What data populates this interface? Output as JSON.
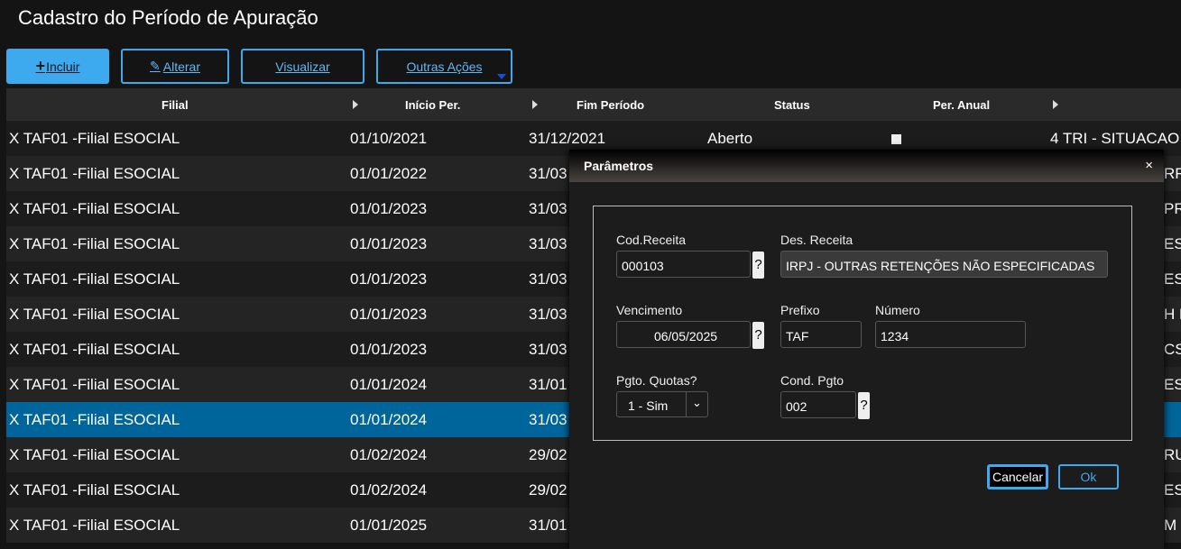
{
  "title": "Cadastro do Período de Apuração",
  "toolbar": {
    "incluir": "Incluir",
    "alterar": "Alterar",
    "visualizar": "Visualizar",
    "outras": "Outras Ações",
    "accent": "#3da9ef"
  },
  "columns": [
    "Filial",
    "Início Per.",
    "Fim Período",
    "Status",
    "Per. Anual"
  ],
  "rows": [
    {
      "filial": "X TAF01 -Filial ESOCIAL",
      "inicio": "01/10/2021",
      "fim": "31/12/2021",
      "status": "Aberto",
      "per_anual": "4 TRI - SITUACAO",
      "tail": ""
    },
    {
      "filial": "X TAF01 -Filial ESOCIAL",
      "inicio": "01/01/2022",
      "fim": "31/03",
      "tail": "RF"
    },
    {
      "filial": "X TAF01 -Filial ESOCIAL",
      "inicio": "01/01/2023",
      "fim": "31/03",
      "tail": "PR"
    },
    {
      "filial": "X TAF01 -Filial ESOCIAL",
      "inicio": "01/01/2023",
      "fim": "31/03",
      "tail": "ES"
    },
    {
      "filial": "X TAF01 -Filial ESOCIAL",
      "inicio": "01/01/2023",
      "fim": "31/03",
      "tail": "ES"
    },
    {
      "filial": "X TAF01 -Filial ESOCIAL",
      "inicio": "01/01/2023",
      "fim": "31/03",
      "tail": "H E"
    },
    {
      "filial": "X TAF01 -Filial ESOCIAL",
      "inicio": "01/01/2023",
      "fim": "31/03",
      "tail": "CS"
    },
    {
      "filial": "X TAF01 -Filial ESOCIAL",
      "inicio": "01/01/2024",
      "fim": "31/01",
      "tail": "ES"
    },
    {
      "filial": "X TAF01 -Filial ESOCIAL",
      "inicio": "01/01/2024",
      "fim": "31/03",
      "tail": "",
      "selected": true
    },
    {
      "filial": "X TAF01 -Filial ESOCIAL",
      "inicio": "01/02/2024",
      "fim": "29/02",
      "tail": "RU"
    },
    {
      "filial": "X TAF01 -Filial ESOCIAL",
      "inicio": "01/02/2024",
      "fim": "29/02",
      "tail": "ES"
    },
    {
      "filial": "X TAF01 -Filial ESOCIAL",
      "inicio": "01/01/2025",
      "fim": "31/01",
      "tail": "M"
    }
  ],
  "dialog": {
    "title": "Parâmetros",
    "close": "×",
    "cod_receita_label": "Cod.Receita",
    "cod_receita": "000103",
    "des_receita_label": "Des. Receita",
    "des_receita": "IRPJ - OUTRAS RETENÇÕES NÃO ESPECIFICADAS",
    "vencimento_label": "Vencimento",
    "vencimento": "06/05/2025",
    "prefixo_label": "Prefixo",
    "prefixo": "TAF",
    "numero_label": "Número",
    "numero": "1234",
    "pgto_quotas_label": "Pgto. Quotas?",
    "pgto_quotas": "1 - Sim",
    "cond_pgto_label": "Cond. Pgto",
    "cond_pgto": "002",
    "lookup": "?",
    "cancelar": "Cancelar",
    "ok": "Ok"
  }
}
